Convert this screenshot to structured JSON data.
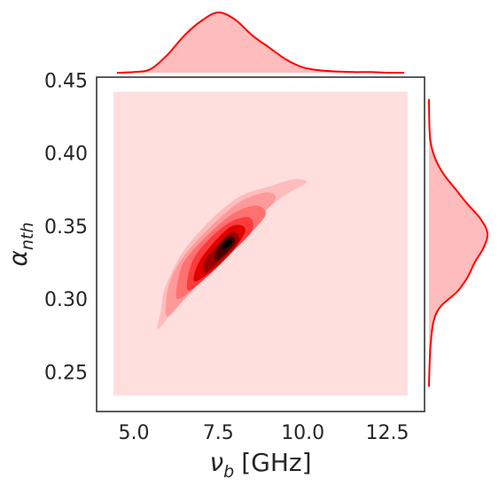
{
  "chart_data": {
    "type": "kde-jointplot",
    "xlabel_main": "ν",
    "xlabel_sub": "b",
    "xlabel_unit": "[GHz]",
    "ylabel_main": "α",
    "ylabel_sub": "nth",
    "xlim": [
      3.9,
      13.6
    ],
    "ylim": [
      0.223,
      0.452
    ],
    "x_ticks": [
      5.0,
      7.5,
      10.0,
      12.5
    ],
    "x_tick_labels": [
      "5.0",
      "7.5",
      "10.0",
      "12.5"
    ],
    "y_ticks": [
      0.25,
      0.3,
      0.35,
      0.4,
      0.45
    ],
    "y_tick_labels": [
      "0.25",
      "0.30",
      "0.35",
      "0.40",
      "0.45"
    ],
    "grid": false,
    "colors": {
      "background_fill": "#ffdede",
      "marginal_line": "#ff0000",
      "marginal_fill": "#ffbcbc",
      "levels": [
        "#ffbcbc",
        "#ff9a9a",
        "#ff7070",
        "#ff3a3a",
        "#e00000",
        "#9a0000",
        "#4a0000",
        "#000000"
      ]
    },
    "kde_background_extent": {
      "x": [
        4.4,
        13.1
      ],
      "y": [
        0.234,
        0.442
      ]
    },
    "joint_mode": {
      "x": 7.8,
      "y": 0.338
    },
    "contours": [
      {
        "level": 1,
        "points": [
          [
            5.7,
            0.28
          ],
          [
            5.9,
            0.284
          ],
          [
            6.4,
            0.3
          ],
          [
            7.0,
            0.318
          ],
          [
            7.8,
            0.336
          ],
          [
            8.6,
            0.355
          ],
          [
            9.4,
            0.37
          ],
          [
            10.0,
            0.378
          ],
          [
            10.1,
            0.381
          ],
          [
            9.7,
            0.382
          ],
          [
            9.0,
            0.377
          ],
          [
            8.2,
            0.371
          ],
          [
            7.4,
            0.357
          ],
          [
            6.6,
            0.337
          ],
          [
            6.2,
            0.322
          ],
          [
            5.9,
            0.306
          ],
          [
            5.8,
            0.292
          ]
        ]
      },
      {
        "level": 2,
        "points": [
          [
            6.0,
            0.288
          ],
          [
            6.5,
            0.3
          ],
          [
            7.2,
            0.318
          ],
          [
            8.0,
            0.338
          ],
          [
            8.8,
            0.358
          ],
          [
            9.2,
            0.369
          ],
          [
            8.9,
            0.373
          ],
          [
            8.1,
            0.366
          ],
          [
            7.2,
            0.348
          ],
          [
            6.5,
            0.33
          ],
          [
            6.1,
            0.314
          ],
          [
            5.95,
            0.298
          ]
        ]
      },
      {
        "level": 3,
        "points": [
          [
            6.3,
            0.3
          ],
          [
            6.9,
            0.31
          ],
          [
            7.6,
            0.326
          ],
          [
            8.4,
            0.344
          ],
          [
            8.9,
            0.358
          ],
          [
            8.6,
            0.364
          ],
          [
            7.9,
            0.358
          ],
          [
            7.1,
            0.342
          ],
          [
            6.5,
            0.326
          ],
          [
            6.3,
            0.312
          ]
        ]
      },
      {
        "level": 4,
        "points": [
          [
            6.6,
            0.306
          ],
          [
            7.2,
            0.316
          ],
          [
            7.9,
            0.332
          ],
          [
            8.5,
            0.347
          ],
          [
            8.4,
            0.356
          ],
          [
            7.8,
            0.352
          ],
          [
            7.1,
            0.338
          ],
          [
            6.7,
            0.324
          ]
        ]
      },
      {
        "level": 5,
        "points": [
          [
            6.8,
            0.312
          ],
          [
            7.4,
            0.321
          ],
          [
            8.0,
            0.335
          ],
          [
            8.3,
            0.348
          ],
          [
            7.9,
            0.35
          ],
          [
            7.3,
            0.337
          ],
          [
            6.9,
            0.324
          ]
        ]
      },
      {
        "level": 6,
        "points": [
          [
            7.1,
            0.318
          ],
          [
            7.6,
            0.327
          ],
          [
            8.1,
            0.34
          ],
          [
            7.9,
            0.346
          ],
          [
            7.4,
            0.335
          ],
          [
            7.1,
            0.326
          ]
        ]
      },
      {
        "level": 7,
        "points": [
          [
            7.4,
            0.326
          ],
          [
            7.8,
            0.333
          ],
          [
            8.0,
            0.34
          ],
          [
            7.8,
            0.343
          ],
          [
            7.5,
            0.336
          ]
        ]
      },
      {
        "level": 8,
        "points": [
          [
            7.65,
            0.334
          ],
          [
            7.9,
            0.338
          ],
          [
            7.85,
            0.341
          ],
          [
            7.65,
            0.338
          ]
        ]
      }
    ],
    "x_marginal": {
      "x": [
        4.5,
        5.0,
        5.5,
        6.0,
        6.5,
        7.0,
        7.5,
        8.0,
        8.5,
        9.0,
        9.5,
        10.0,
        10.5,
        11.0,
        11.5,
        12.0,
        12.5,
        13.0
      ],
      "density": [
        0.0,
        0.01,
        0.06,
        0.3,
        0.62,
        0.86,
        1.0,
        0.88,
        0.62,
        0.42,
        0.22,
        0.09,
        0.04,
        0.02,
        0.01,
        0.01,
        0.0,
        0.0
      ]
    },
    "y_marginal": {
      "y": [
        0.24,
        0.255,
        0.27,
        0.285,
        0.295,
        0.305,
        0.315,
        0.325,
        0.335,
        0.345,
        0.355,
        0.365,
        0.375,
        0.385,
        0.395,
        0.405,
        0.415,
        0.437
      ],
      "density": [
        0.0,
        0.01,
        0.03,
        0.08,
        0.2,
        0.48,
        0.66,
        0.78,
        0.93,
        1.0,
        0.88,
        0.66,
        0.46,
        0.26,
        0.12,
        0.04,
        0.01,
        0.0
      ]
    }
  }
}
